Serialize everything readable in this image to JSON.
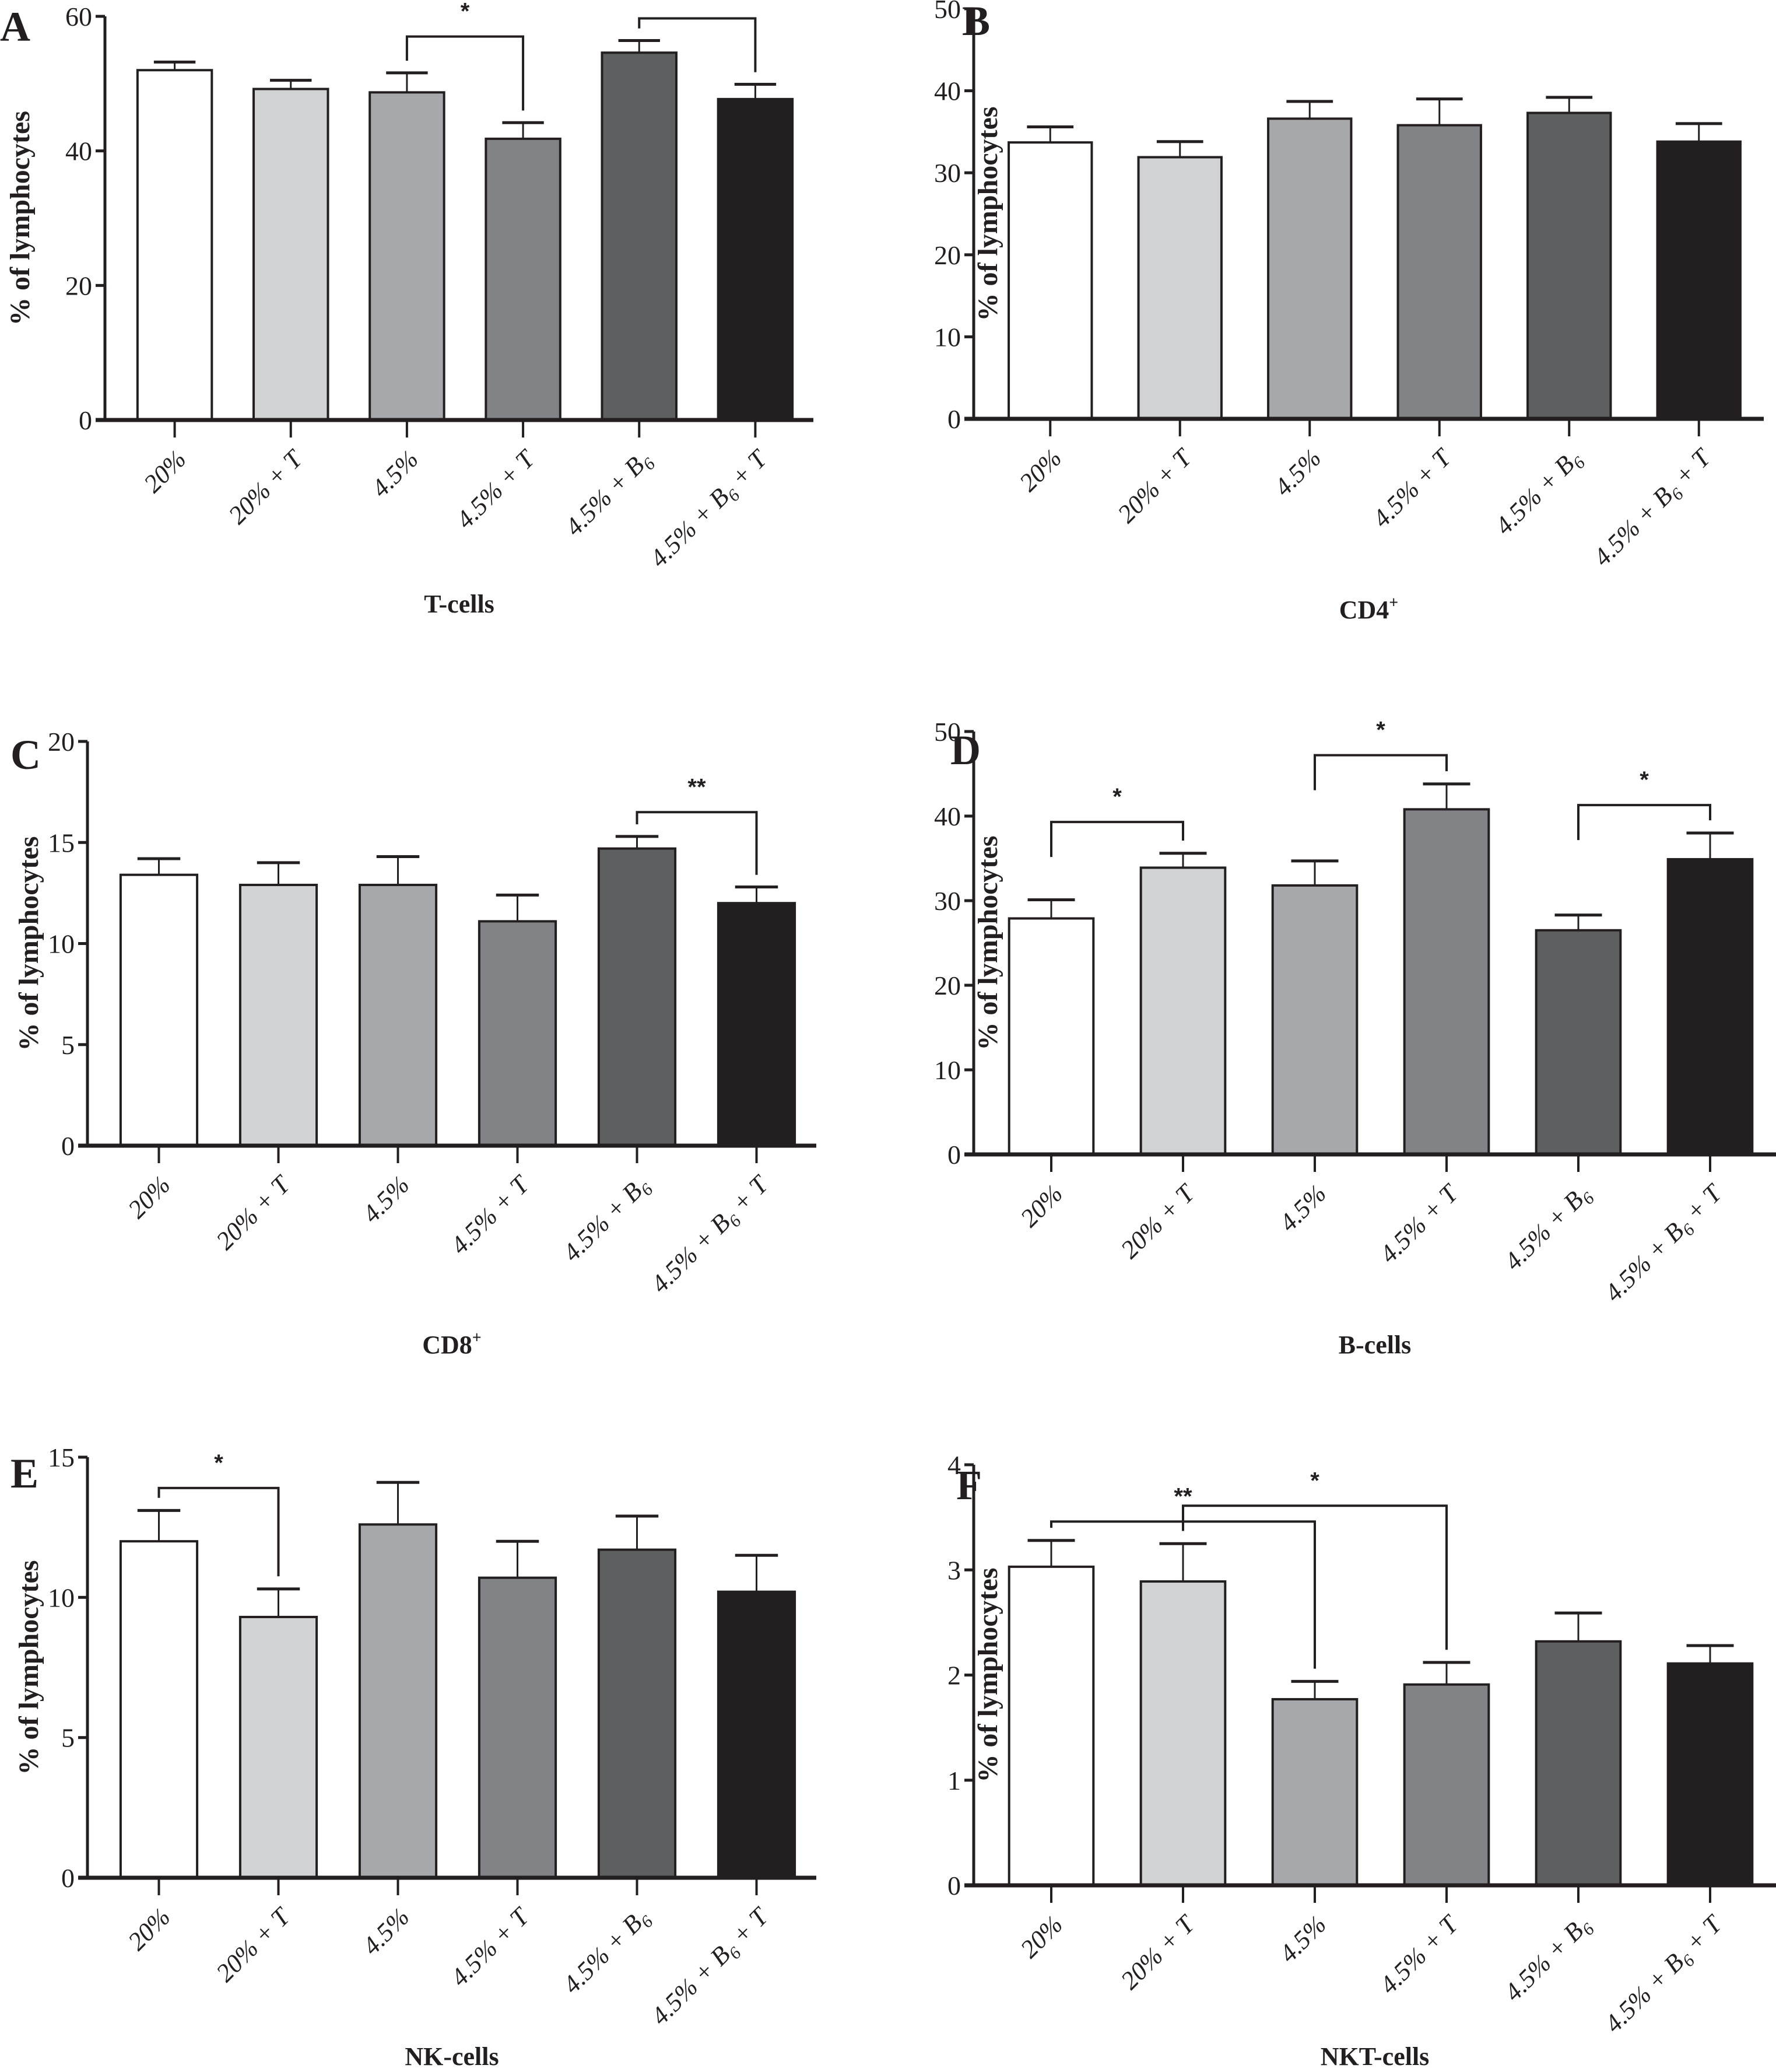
{
  "figure": {
    "categories": [
      "20%",
      "20% + T",
      "4.5%",
      "4.5% + T",
      "4.5% + B6",
      "4.5% + B6 + T"
    ],
    "category_parts": [
      {
        "main": "20%",
        "sub": "",
        "tail": ""
      },
      {
        "main": "20% + T",
        "sub": "",
        "tail": ""
      },
      {
        "main": "4.5%",
        "sub": "",
        "tail": ""
      },
      {
        "main": "4.5% + T",
        "sub": "",
        "tail": ""
      },
      {
        "main": "4.5% + B",
        "sub": "6",
        "tail": ""
      },
      {
        "main": "4.5% + B",
        "sub": "6",
        "tail": " + T"
      }
    ],
    "bar_colors": [
      "#ffffff",
      "#d1d2d4",
      "#a7a8ab",
      "#828387",
      "#5e5f61",
      "#231f20"
    ],
    "ylabel": "% of lymphocytes"
  },
  "chart_data": [
    {
      "type": "bar",
      "panel": "A",
      "title": "T-cells",
      "ylabel": "% of lymphocytes",
      "ylim": [
        0,
        60
      ],
      "yticks": [
        0,
        20,
        40,
        60
      ],
      "categories": [
        "20%",
        "20% + T",
        "4.5%",
        "4.5% + T",
        "4.5% + B6",
        "4.5% + B6 + T"
      ],
      "values": [
        52.0,
        49.2,
        48.7,
        41.8,
        54.6,
        47.7
      ],
      "error_upper": [
        53.2,
        50.5,
        51.6,
        44.2,
        56.4,
        49.9
      ],
      "significance": [
        {
          "from": 2,
          "to": 3,
          "label": "*",
          "level": 57
        },
        {
          "from": 4,
          "to": 5,
          "label": "*",
          "level": 59.7
        }
      ]
    },
    {
      "type": "bar",
      "panel": "B",
      "title": "CD4+",
      "ylabel": "% of lymphocytes",
      "ylim": [
        0,
        50
      ],
      "yticks": [
        0,
        10,
        20,
        30,
        40,
        50
      ],
      "categories": [
        "20%",
        "20% + T",
        "4.5%",
        "4.5% + T",
        "4.5% + B6",
        "4.5% + B6 + T"
      ],
      "values": [
        33.7,
        31.9,
        36.6,
        35.8,
        37.3,
        33.8
      ],
      "error_upper": [
        35.6,
        33.8,
        38.7,
        39.0,
        39.2,
        36.0
      ],
      "significance": []
    },
    {
      "type": "bar",
      "panel": "C",
      "title": "CD8+",
      "ylabel": "% of lymphocytes",
      "ylim": [
        0,
        20
      ],
      "yticks": [
        0,
        5,
        10,
        15,
        20
      ],
      "categories": [
        "20%",
        "20% + T",
        "4.5%",
        "4.5% + T",
        "4.5% + B6",
        "4.5% + B6 + T"
      ],
      "values": [
        13.4,
        12.9,
        12.9,
        11.1,
        14.7,
        12.0
      ],
      "error_upper": [
        14.2,
        14.0,
        14.3,
        12.4,
        15.3,
        12.8
      ],
      "significance": [
        {
          "from": 4,
          "to": 5,
          "label": "**",
          "level": 16.5
        }
      ]
    },
    {
      "type": "bar",
      "panel": "D",
      "title": "B-cells",
      "ylabel": "% of lymphocytes",
      "ylim": [
        0,
        50
      ],
      "yticks": [
        0,
        10,
        20,
        30,
        40,
        50
      ],
      "categories": [
        "20%",
        "20% + T",
        "4.5%",
        "4.5% + T",
        "4.5% + B6",
        "4.5% + B6 + T"
      ],
      "values": [
        27.9,
        33.9,
        31.8,
        40.8,
        26.5,
        34.9
      ],
      "error_upper": [
        30.1,
        35.6,
        34.7,
        43.8,
        28.3,
        38.0
      ],
      "significance": [
        {
          "from": 0,
          "to": 1,
          "label": "*",
          "level": 39.3
        },
        {
          "from": 2,
          "to": 3,
          "label": "*",
          "level": 47.2
        },
        {
          "from": 4,
          "to": 5,
          "label": "*",
          "level": 41.3
        }
      ]
    },
    {
      "type": "bar",
      "panel": "E",
      "title": "NK-cells",
      "ylabel": "% of lymphocytes",
      "ylim": [
        0,
        15
      ],
      "yticks": [
        0,
        5,
        10,
        15
      ],
      "categories": [
        "20%",
        "20% + T",
        "4.5%",
        "4.5% + T",
        "4.5% + B6",
        "4.5% + B6 + T"
      ],
      "values": [
        12.0,
        9.3,
        12.6,
        10.7,
        11.7,
        10.2
      ],
      "error_upper": [
        13.1,
        10.3,
        14.1,
        12.0,
        12.9,
        11.5
      ],
      "significance": [
        {
          "from": 0,
          "to": 1,
          "label": "*",
          "level": 13.9
        }
      ]
    },
    {
      "type": "bar",
      "panel": "F",
      "title": "NKT-cells",
      "ylabel": "% of lymphocytes",
      "ylim": [
        0,
        4
      ],
      "yticks": [
        0,
        1,
        2,
        3,
        4
      ],
      "categories": [
        "20%",
        "20% + T",
        "4.5%",
        "4.5% + T",
        "4.5% + B6",
        "4.5% + B6 + T"
      ],
      "values": [
        3.03,
        2.89,
        1.77,
        1.91,
        2.32,
        2.11
      ],
      "error_upper": [
        3.28,
        3.25,
        1.94,
        2.12,
        2.59,
        2.28
      ],
      "significance": [
        {
          "from": 0,
          "to": 2,
          "label": "**",
          "level": 3.46
        },
        {
          "from": 1,
          "to": 3,
          "label": "*",
          "level": 3.61
        }
      ]
    }
  ]
}
